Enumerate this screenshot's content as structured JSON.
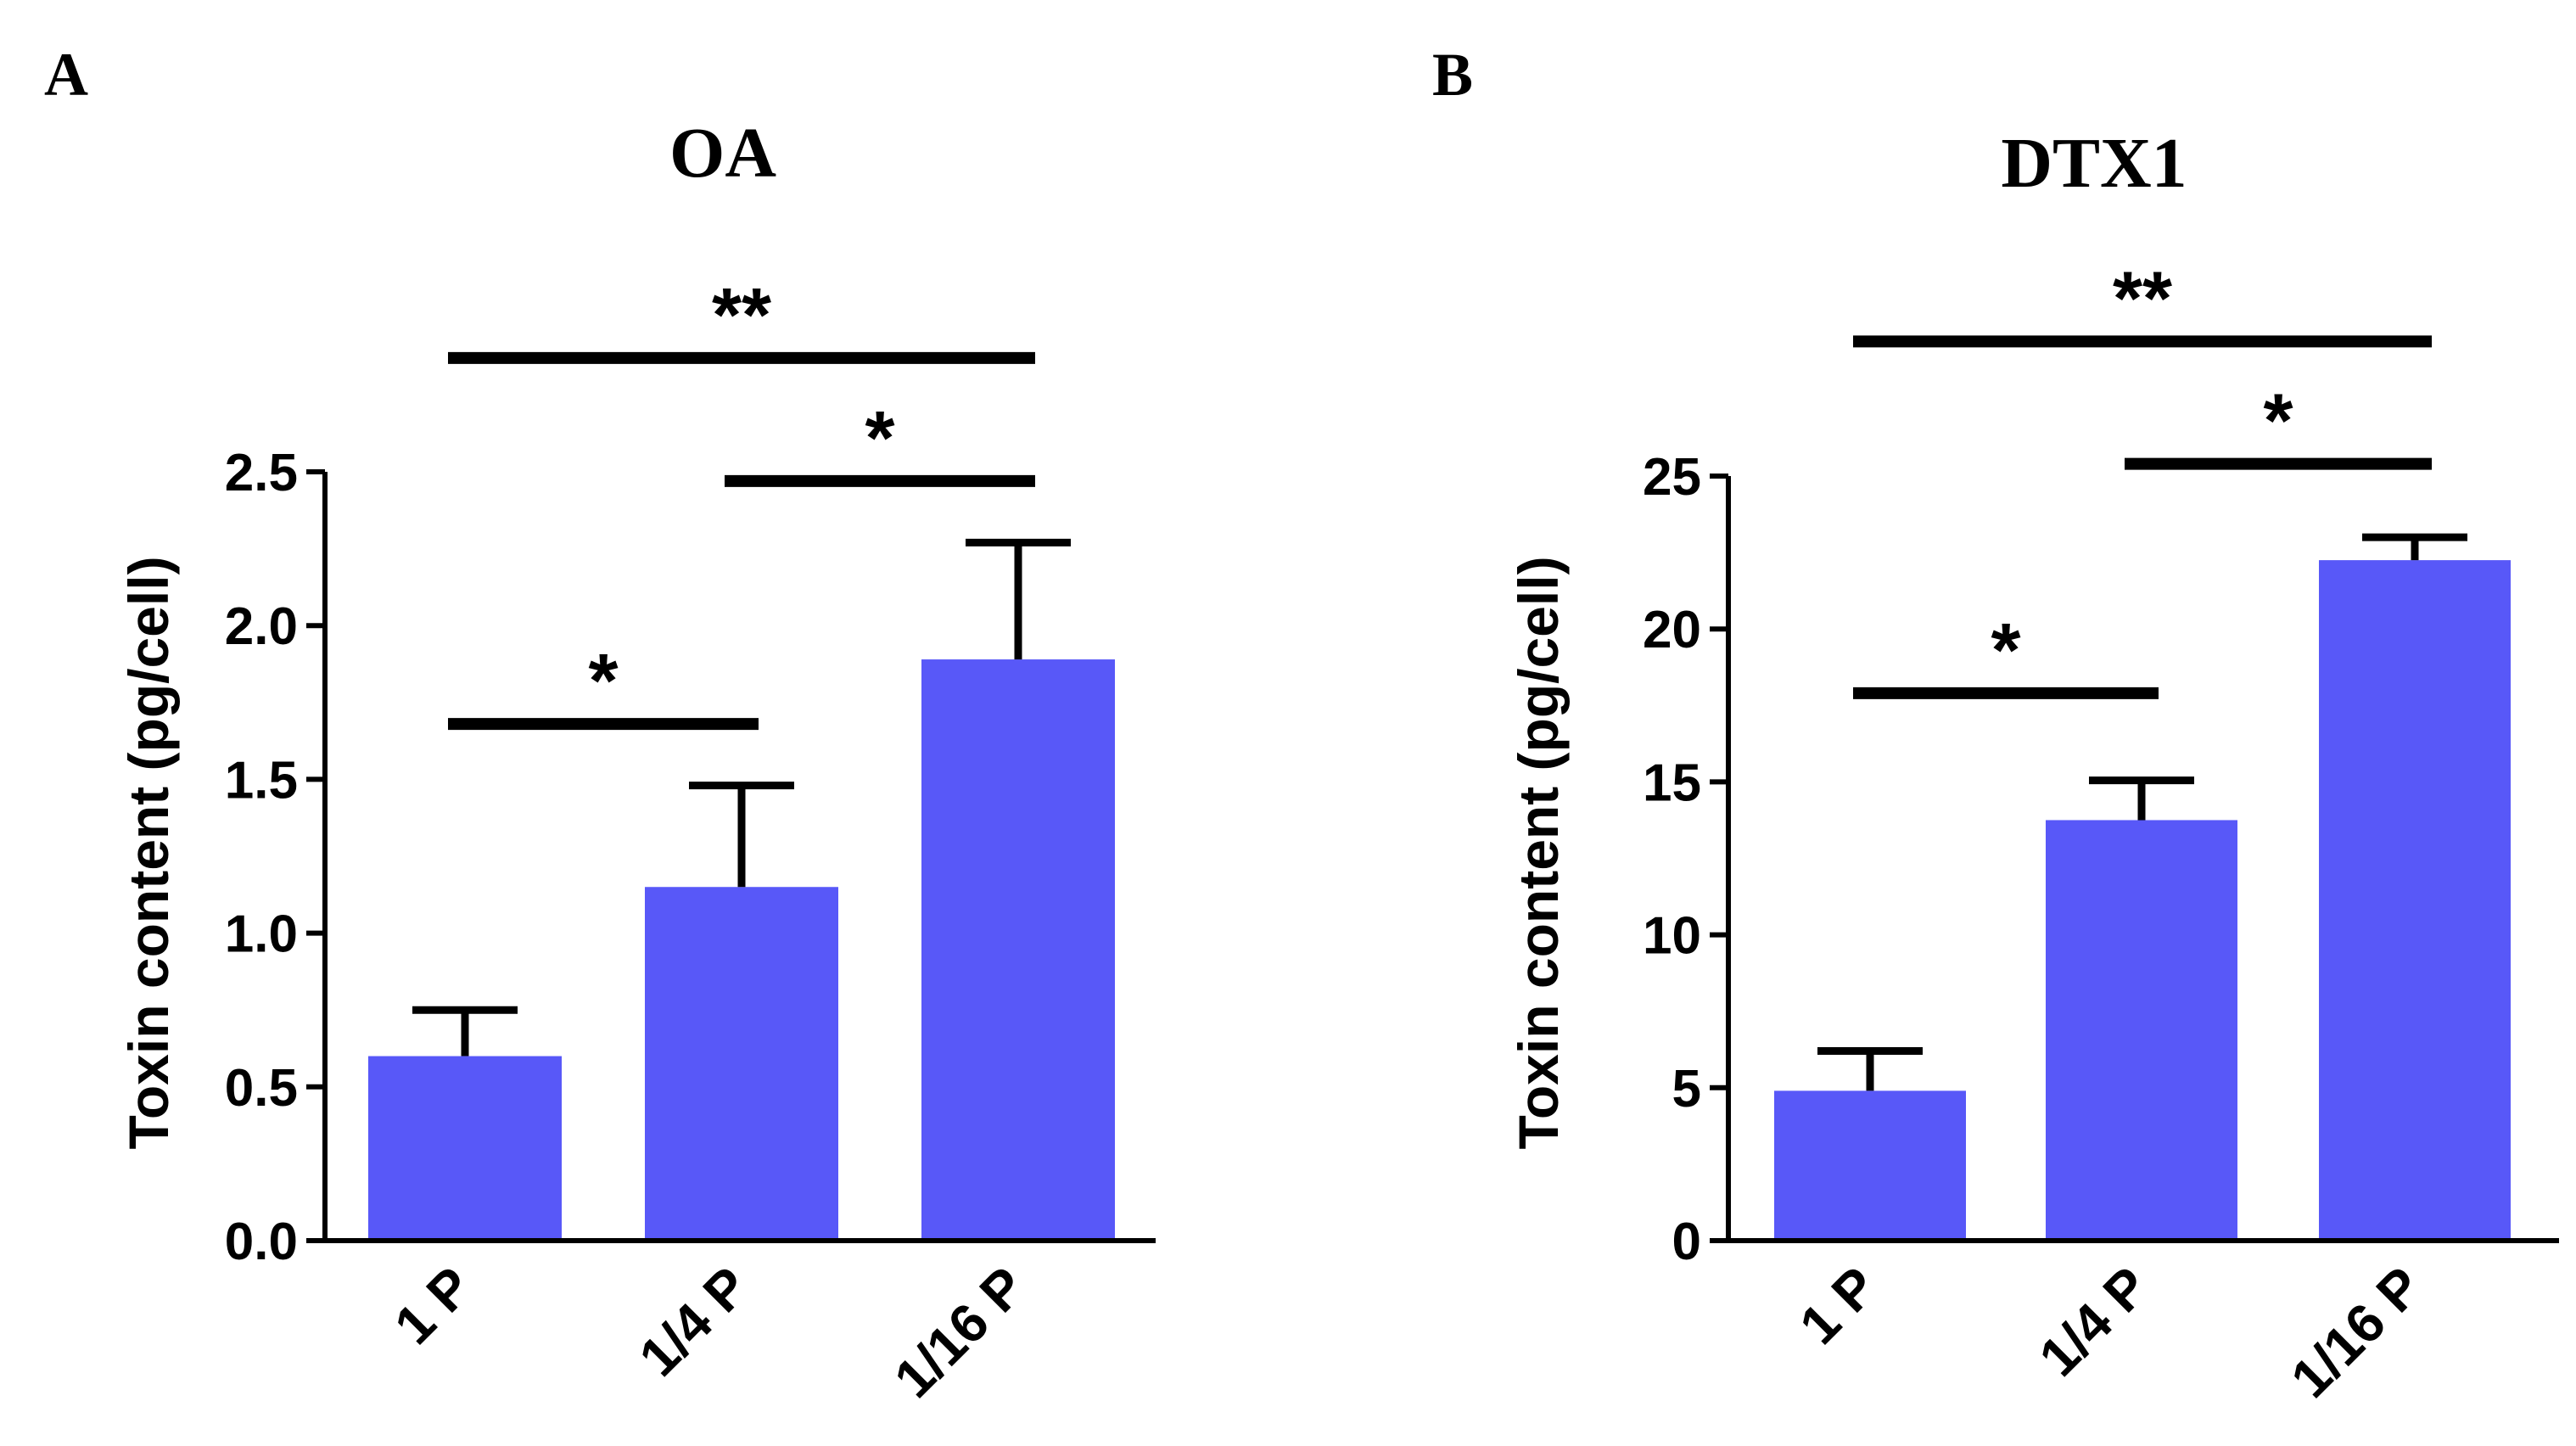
{
  "chart_data": [
    {
      "panel": "A",
      "type": "bar",
      "title": "OA",
      "xlabel": "",
      "ylabel": "Toxin content (pg/cell)",
      "categories": [
        "1 P",
        "1/4 P",
        "1/16 P"
      ],
      "values": [
        0.6,
        1.15,
        1.89
      ],
      "errors": [
        0.15,
        0.33,
        0.38
      ],
      "ylim": [
        0,
        2.5
      ],
      "yticks": [
        "0.0",
        "0.5",
        "1.0",
        "1.5",
        "2.0",
        "2.5"
      ],
      "bar_color": "#5858f8",
      "significance": [
        {
          "from": 0,
          "to": 1,
          "label": "*",
          "y": 1.68
        },
        {
          "from": 1,
          "to": 2,
          "label": "*",
          "y": 2.47
        },
        {
          "from": 0,
          "to": 2,
          "label": "**",
          "y": 2.87
        }
      ]
    },
    {
      "panel": "B",
      "type": "bar",
      "title": "DTX1",
      "xlabel": "",
      "ylabel": "Toxin content (pg/cell)",
      "categories": [
        "1 P",
        "1/4 P",
        "1/16 P"
      ],
      "values": [
        4.9,
        13.75,
        22.25
      ],
      "errors": [
        1.3,
        1.3,
        0.75
      ],
      "ylim": [
        0,
        25
      ],
      "yticks": [
        "0",
        "5",
        "10",
        "15",
        "20",
        "25"
      ],
      "bar_color": "#5858f8",
      "significance": [
        {
          "from": 0,
          "to": 1,
          "label": "*",
          "y": 17.9
        },
        {
          "from": 1,
          "to": 2,
          "label": "*",
          "y": 25.4
        },
        {
          "from": 0,
          "to": 2,
          "label": "**",
          "y": 29.4
        }
      ]
    }
  ]
}
